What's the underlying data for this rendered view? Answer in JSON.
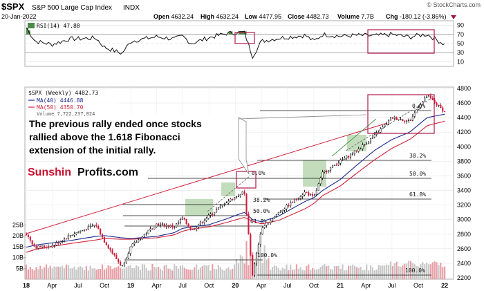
{
  "header": {
    "symbol": "$SPX",
    "name": "S&P 500 Large Cap Index",
    "exchange": "INDX",
    "date": "20-Jan-2022",
    "open_label": "Open",
    "open": "4632.24",
    "high_label": "High",
    "high": "4632.24",
    "low_label": "Low",
    "low": "4477.95",
    "close_label": "Close",
    "close": "4482.73",
    "volume_label": "Volume",
    "volume": "7.7B",
    "change_label": "Chg",
    "change": "-180.12 (-3.86%)",
    "copyright": "© StockCharts.com"
  },
  "rsi_panel": {
    "legend": "RSI(14) 47.88",
    "ticks": [
      "90",
      "70",
      "50",
      "30",
      "10"
    ]
  },
  "price_panel": {
    "legend_main": "$SPX (Weekly) 4482.73",
    "legend_ma40": "MA(40) 4446.88",
    "legend_ma50": "MA(50) 4350.70",
    "legend_volume": "Volume 7,722,237,824",
    "annotation_lines": [
      "The previous rally ended once stocks",
      "rallied above the 1.618 Fibonacci",
      "extension of the initial rally."
    ],
    "logo_part1": "Sunshin",
    "logo_part2": "Profits.com",
    "fib_labels": [
      "38.2%",
      "50.0%",
      "61.8%",
      "100.0%",
      "0.0%",
      "38.2%",
      "50.0%",
      "61.8%",
      "100.0%",
      "0.0%"
    ],
    "volume_ticks": [
      "25B",
      "20B",
      "15B",
      "10B",
      "5B"
    ],
    "x_labels": [
      "18",
      "Apr",
      "Jul",
      "Oct",
      "19",
      "Apr",
      "Jul",
      "Oct",
      "20",
      "Apr",
      "Jul",
      "Oct",
      "21",
      "Apr",
      "Jul",
      "Oct",
      "22"
    ]
  },
  "colors": {
    "price_up": "#111111",
    "price_down": "#d01c3b",
    "ma40": "#1a2a8c",
    "ma50": "#d0203a",
    "volume_up": "#c8c8c8",
    "volume_down": "#e8a0a8",
    "highlight_box": "#b01848",
    "green_box": "#b9d7b0",
    "rsi_fill": "#4a8a4a"
  },
  "chart_data": {
    "type": "line",
    "title": "$SPX S&P 500 Large Cap Index INDX",
    "xlabel": "",
    "ylabel": "",
    "ylim": [
      2200,
      4800
    ],
    "x_tick_labels": [
      "18",
      "Apr",
      "Jul",
      "Oct",
      "19",
      "Apr",
      "Jul",
      "Oct",
      "20",
      "Apr",
      "Jul",
      "Oct",
      "21",
      "Apr",
      "Jul",
      "Oct",
      "22"
    ],
    "y_tick_labels": [
      "4800",
      "4600",
      "4400",
      "4200",
      "4000",
      "3800",
      "3600",
      "3400",
      "3200",
      "3000",
      "2800",
      "2600",
      "2400",
      "2200"
    ],
    "x": [
      "2018-01",
      "2018-02",
      "2018-04",
      "2018-06",
      "2018-09",
      "2018-10",
      "2018-12",
      "2019-01",
      "2019-04",
      "2019-06",
      "2019-07",
      "2019-08",
      "2019-10",
      "2019-12",
      "2020-02",
      "2020-03",
      "2020-04",
      "2020-06",
      "2020-09",
      "2020-10",
      "2020-11",
      "2021-01",
      "2021-03",
      "2021-05",
      "2021-07",
      "2021-09",
      "2021-10",
      "2021-11",
      "2022-01"
    ],
    "series": [
      {
        "name": "$SPX (Weekly)",
        "values": [
          2800,
          2620,
          2640,
          2780,
          2930,
          2700,
          2350,
          2630,
          2940,
          2900,
          3020,
          2850,
          3050,
          3240,
          3380,
          2240,
          2880,
          3100,
          3380,
          3300,
          3640,
          3800,
          3950,
          4150,
          4400,
          4350,
          4550,
          4700,
          4480
        ]
      },
      {
        "name": "MA(40)",
        "values": [
          2620,
          2650,
          2680,
          2710,
          2770,
          2780,
          2750,
          2740,
          2770,
          2820,
          2880,
          2900,
          2930,
          3010,
          3100,
          3000,
          2970,
          3050,
          3250,
          3300,
          3400,
          3550,
          3750,
          3950,
          4100,
          4200,
          4300,
          4400,
          4447
        ]
      },
      {
        "name": "MA(50)",
        "values": [
          2550,
          2590,
          2630,
          2670,
          2720,
          2740,
          2730,
          2730,
          2750,
          2790,
          2840,
          2870,
          2900,
          2960,
          3030,
          2980,
          2940,
          2990,
          3150,
          3220,
          3330,
          3460,
          3640,
          3820,
          3980,
          4100,
          4190,
          4290,
          4351
        ]
      }
    ],
    "rsi": {
      "ylim": [
        0,
        100
      ],
      "values": [
        85,
        55,
        48,
        60,
        62,
        42,
        28,
        55,
        65,
        60,
        66,
        50,
        63,
        72,
        75,
        22,
        55,
        62,
        68,
        55,
        70,
        66,
        68,
        67,
        70,
        64,
        68,
        70,
        48
      ]
    },
    "volume": {
      "ticks": [
        "25B",
        "20B",
        "15B",
        "10B",
        "5B"
      ],
      "range_billion": [
        0,
        28
      ]
    },
    "fibonacci_levels": [
      "38.2%",
      "50.0%",
      "61.8%",
      "100.0%",
      "0.0%"
    ]
  }
}
